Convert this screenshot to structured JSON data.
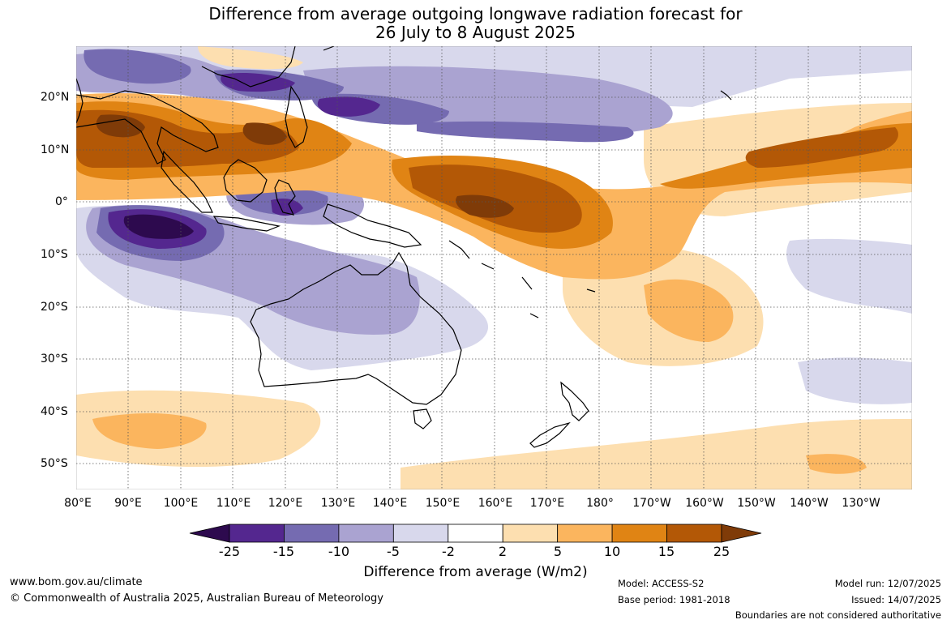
{
  "title": {
    "line1": "Difference from average outgoing longwave radiation forecast for",
    "line2": "26 July to 8 August 2025"
  },
  "map": {
    "lat_labels": [
      "20°N",
      "10°N",
      "0°",
      "10°S",
      "20°S",
      "30°S",
      "40°S",
      "50°S"
    ],
    "lon_labels": [
      "80°E",
      "90°E",
      "100°E",
      "110°E",
      "120°E",
      "130°E",
      "140°E",
      "150°E",
      "160°E",
      "170°E",
      "180°",
      "170°W",
      "160°W",
      "150°W",
      "140°W",
      "130°W"
    ]
  },
  "legend": {
    "title": "Difference from average (W/m2)",
    "tick_labels": [
      "-25",
      "-15",
      "-10",
      "-5",
      "-2",
      "2",
      "5",
      "10",
      "15",
      "25"
    ],
    "colors": [
      "#2d0a4e",
      "#54278f",
      "#756bb1",
      "#aaa3d1",
      "#d8d8ec",
      "#ffffff",
      "#fddfb0",
      "#fbb55e",
      "#e08414",
      "#b35806",
      "#7f3b08"
    ]
  },
  "footer": {
    "website": "www.bom.gov.au/climate",
    "copyright": "© Commonwealth of Australia 2025, Australian Bureau of Meteorology",
    "model": "Model: ACCESS-S2",
    "base_period": "Base period: 1981-2018",
    "model_run": "Model run: 12/07/2025",
    "issued": "Issued: 14/07/2025",
    "disclaimer": "Boundaries are not considered authoritative"
  }
}
